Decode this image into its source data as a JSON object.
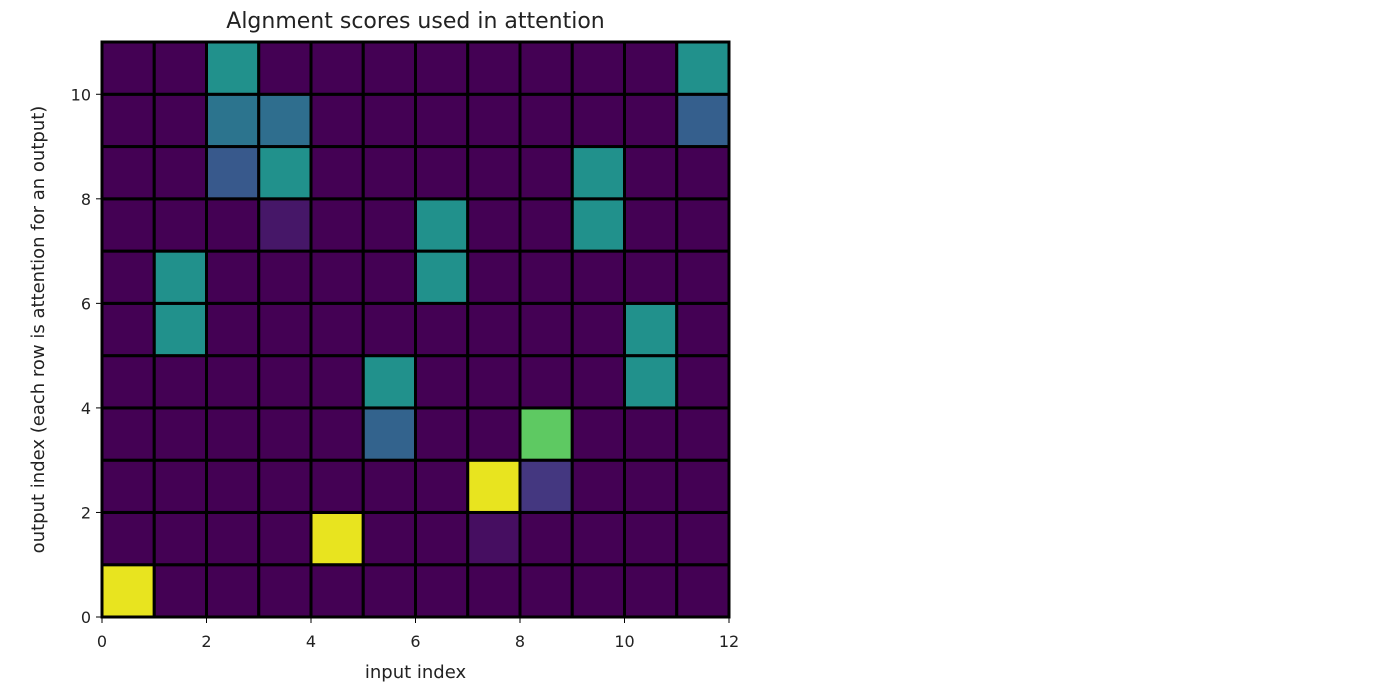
{
  "chart_data": {
    "type": "heatmap",
    "title": "Algnment scores used in attention",
    "xlabel": "input index",
    "ylabel": "output index (each row is attention for an output)",
    "xlim": [
      0,
      12
    ],
    "ylim": [
      0,
      11
    ],
    "x_ticks": [
      0,
      2,
      4,
      6,
      8,
      10,
      12
    ],
    "y_ticks": [
      0,
      2,
      4,
      6,
      8,
      10
    ],
    "colormap": "viridis",
    "vmin": 0,
    "vmax": 1,
    "grid": false,
    "cell_edge_color": "#000000",
    "rows": [
      [
        1.0,
        0,
        0,
        0,
        0,
        0,
        0,
        0,
        0,
        0,
        0,
        0
      ],
      [
        0,
        0,
        0,
        0,
        1.0,
        0,
        0,
        0.05,
        0,
        0,
        0,
        0
      ],
      [
        0,
        0,
        0,
        0,
        0,
        0,
        0,
        1.0,
        0.2,
        0,
        0,
        0
      ],
      [
        0,
        0,
        0,
        0,
        0,
        0.4,
        0,
        0,
        0.75,
        0,
        0,
        0
      ],
      [
        0,
        0,
        0,
        0,
        0,
        0.55,
        0,
        0,
        0,
        0,
        0.55,
        0
      ],
      [
        0,
        0.55,
        0,
        0,
        0,
        0,
        0,
        0,
        0,
        0,
        0.55,
        0
      ],
      [
        0,
        0.55,
        0,
        0,
        0,
        0,
        0.55,
        0,
        0,
        0,
        0,
        0
      ],
      [
        0,
        0,
        0,
        0.08,
        0,
        0,
        0.55,
        0,
        0,
        0.55,
        0,
        0
      ],
      [
        0,
        0,
        0.35,
        0.55,
        0,
        0,
        0,
        0,
        0,
        0.55,
        0,
        0
      ],
      [
        0,
        0,
        0.48,
        0.45,
        0,
        0,
        0,
        0,
        0,
        0,
        0,
        0.38
      ],
      [
        0,
        0,
        0.55,
        0,
        0,
        0,
        0,
        0,
        0,
        0,
        0,
        0.55
      ]
    ]
  }
}
